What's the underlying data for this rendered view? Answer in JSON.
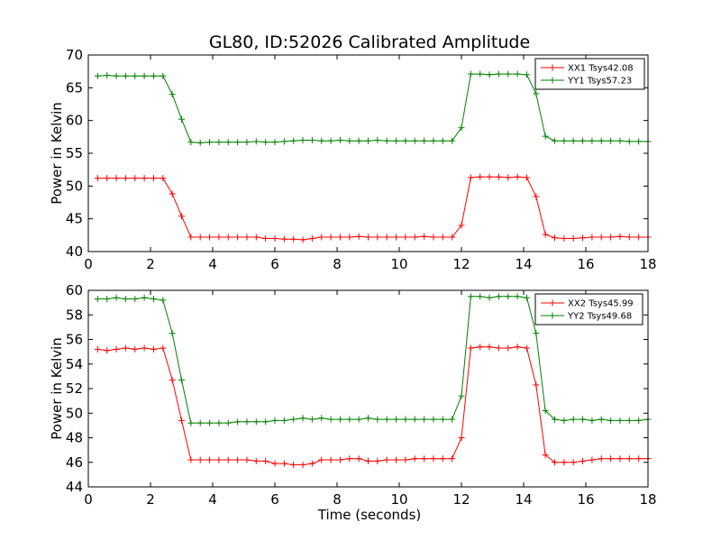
{
  "chart_data": [
    {
      "type": "line",
      "title": "GL80, ID:52026 Calibrated Amplitude",
      "xlabel": "",
      "ylabel": "Power in Kelvin",
      "xlim": [
        0,
        18
      ],
      "ylim": [
        40,
        70
      ],
      "xticks": [
        "0",
        "2",
        "4",
        "6",
        "8",
        "10",
        "12",
        "14",
        "16",
        "18"
      ],
      "yticks": [
        "40",
        "45",
        "50",
        "55",
        "60",
        "65",
        "70"
      ],
      "legend_position": "top-right",
      "x": [
        0.3,
        0.6,
        0.9,
        1.2,
        1.5,
        1.8,
        2.1,
        2.4,
        2.7,
        3.0,
        3.3,
        3.6,
        3.9,
        4.2,
        4.5,
        4.8,
        5.1,
        5.4,
        5.7,
        6.0,
        6.3,
        6.6,
        6.9,
        7.2,
        7.5,
        7.8,
        8.1,
        8.4,
        8.7,
        9.0,
        9.3,
        9.6,
        9.9,
        10.2,
        10.5,
        10.8,
        11.1,
        11.4,
        11.7,
        12.0,
        12.3,
        12.6,
        12.9,
        13.2,
        13.5,
        13.8,
        14.1,
        14.4,
        14.7,
        15.0,
        15.3,
        15.6,
        15.9,
        16.2,
        16.5,
        16.8,
        17.1,
        17.4,
        17.7,
        18.0
      ],
      "series": [
        {
          "name": "XX1 Tsys42.08",
          "color": "#ff0000",
          "values": [
            51.2,
            51.2,
            51.2,
            51.2,
            51.2,
            51.2,
            51.2,
            51.2,
            48.8,
            45.4,
            42.2,
            42.2,
            42.2,
            42.2,
            42.2,
            42.2,
            42.2,
            42.2,
            42.0,
            42.0,
            41.9,
            41.9,
            41.8,
            42.0,
            42.2,
            42.2,
            42.2,
            42.2,
            42.3,
            42.2,
            42.2,
            42.2,
            42.2,
            42.2,
            42.2,
            42.3,
            42.2,
            42.2,
            42.2,
            44.0,
            51.3,
            51.4,
            51.4,
            51.4,
            51.3,
            51.4,
            51.3,
            48.4,
            42.6,
            42.1,
            42.0,
            42.0,
            42.1,
            42.2,
            42.2,
            42.2,
            42.3,
            42.2,
            42.2,
            42.2
          ]
        },
        {
          "name": "YY1 Tsys57.23",
          "color": "#008000",
          "values": [
            66.8,
            66.9,
            66.8,
            66.8,
            66.8,
            66.8,
            66.8,
            66.8,
            64.0,
            60.2,
            56.7,
            56.6,
            56.7,
            56.7,
            56.7,
            56.7,
            56.7,
            56.8,
            56.7,
            56.7,
            56.8,
            56.9,
            57.0,
            57.0,
            56.9,
            56.9,
            57.0,
            56.9,
            56.9,
            56.9,
            57.0,
            56.9,
            56.9,
            56.9,
            56.9,
            56.9,
            56.9,
            56.9,
            56.9,
            58.9,
            67.1,
            67.1,
            67.0,
            67.1,
            67.1,
            67.1,
            67.0,
            64.1,
            57.6,
            56.9,
            56.9,
            56.9,
            56.9,
            56.9,
            56.9,
            56.9,
            56.9,
            56.8,
            56.8,
            56.8
          ]
        }
      ]
    },
    {
      "type": "line",
      "title": "",
      "xlabel": "Time (seconds)",
      "ylabel": "Power in Kelvin",
      "xlim": [
        0,
        18
      ],
      "ylim": [
        44,
        60
      ],
      "xticks": [
        "0",
        "2",
        "4",
        "6",
        "8",
        "10",
        "12",
        "14",
        "16",
        "18"
      ],
      "yticks": [
        "44",
        "46",
        "48",
        "50",
        "52",
        "54",
        "56",
        "58",
        "60"
      ],
      "legend_position": "top-right",
      "x": [
        0.3,
        0.6,
        0.9,
        1.2,
        1.5,
        1.8,
        2.1,
        2.4,
        2.7,
        3.0,
        3.3,
        3.6,
        3.9,
        4.2,
        4.5,
        4.8,
        5.1,
        5.4,
        5.7,
        6.0,
        6.3,
        6.6,
        6.9,
        7.2,
        7.5,
        7.8,
        8.1,
        8.4,
        8.7,
        9.0,
        9.3,
        9.6,
        9.9,
        10.2,
        10.5,
        10.8,
        11.1,
        11.4,
        11.7,
        12.0,
        12.3,
        12.6,
        12.9,
        13.2,
        13.5,
        13.8,
        14.1,
        14.4,
        14.7,
        15.0,
        15.3,
        15.6,
        15.9,
        16.2,
        16.5,
        16.8,
        17.1,
        17.4,
        17.7,
        18.0
      ],
      "series": [
        {
          "name": "XX2 Tsys45.99",
          "color": "#ff0000",
          "values": [
            55.2,
            55.1,
            55.2,
            55.3,
            55.2,
            55.3,
            55.2,
            55.3,
            52.7,
            49.4,
            46.2,
            46.2,
            46.2,
            46.2,
            46.2,
            46.2,
            46.2,
            46.1,
            46.1,
            45.9,
            45.9,
            45.8,
            45.8,
            45.9,
            46.2,
            46.2,
            46.2,
            46.3,
            46.3,
            46.1,
            46.1,
            46.2,
            46.2,
            46.2,
            46.3,
            46.3,
            46.3,
            46.3,
            46.3,
            48.0,
            55.3,
            55.4,
            55.4,
            55.3,
            55.3,
            55.4,
            55.3,
            52.3,
            46.6,
            46.0,
            46.0,
            46.0,
            46.1,
            46.2,
            46.3,
            46.3,
            46.3,
            46.3,
            46.3,
            46.3
          ]
        },
        {
          "name": "YY2 Tsys49.68",
          "color": "#008000",
          "values": [
            59.3,
            59.3,
            59.4,
            59.3,
            59.3,
            59.4,
            59.3,
            59.2,
            56.5,
            52.7,
            49.2,
            49.2,
            49.2,
            49.2,
            49.2,
            49.3,
            49.3,
            49.3,
            49.3,
            49.4,
            49.4,
            49.5,
            49.6,
            49.5,
            49.6,
            49.5,
            49.5,
            49.5,
            49.5,
            49.6,
            49.5,
            49.5,
            49.5,
            49.5,
            49.5,
            49.5,
            49.5,
            49.5,
            49.5,
            51.4,
            59.5,
            59.5,
            59.4,
            59.5,
            59.5,
            59.5,
            59.4,
            56.5,
            50.2,
            49.5,
            49.4,
            49.5,
            49.5,
            49.4,
            49.5,
            49.4,
            49.4,
            49.4,
            49.4,
            49.5
          ]
        }
      ]
    }
  ]
}
